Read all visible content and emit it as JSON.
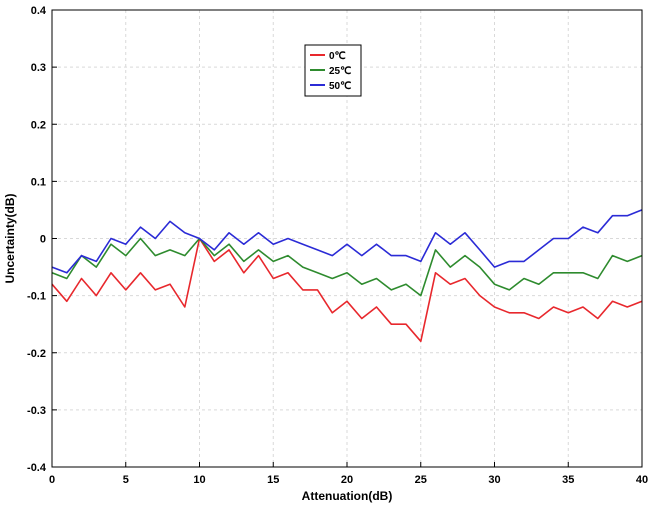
{
  "chart_data": {
    "type": "line",
    "title": "",
    "xlabel": "Attenuation(dB)",
    "ylabel": "Uncertainty(dB)",
    "xlim": [
      0,
      40
    ],
    "ylim": [
      -0.4,
      0.4
    ],
    "xticks": [
      0,
      5,
      10,
      15,
      20,
      25,
      30,
      35,
      40
    ],
    "yticks": [
      -0.4,
      -0.3,
      -0.2,
      -0.1,
      0,
      0.1,
      0.2,
      0.3,
      0.4
    ],
    "grid": true,
    "legend_position": "top-center",
    "x": [
      0,
      1,
      2,
      3,
      4,
      5,
      6,
      7,
      8,
      9,
      10,
      11,
      12,
      13,
      14,
      15,
      16,
      17,
      18,
      19,
      20,
      21,
      22,
      23,
      24,
      25,
      26,
      27,
      28,
      29,
      30,
      31,
      32,
      33,
      34,
      35,
      36,
      37,
      38,
      39,
      40
    ],
    "series": [
      {
        "name": "0℃",
        "color": "#e8282d",
        "values": [
          -0.08,
          -0.11,
          -0.07,
          -0.1,
          -0.06,
          -0.09,
          -0.06,
          -0.09,
          -0.08,
          -0.12,
          0.0,
          -0.04,
          -0.02,
          -0.06,
          -0.03,
          -0.07,
          -0.06,
          -0.09,
          -0.09,
          -0.13,
          -0.11,
          -0.14,
          -0.12,
          -0.15,
          -0.15,
          -0.18,
          -0.06,
          -0.08,
          -0.07,
          -0.1,
          -0.12,
          -0.13,
          -0.13,
          -0.14,
          -0.12,
          -0.13,
          -0.12,
          -0.14,
          -0.11,
          -0.12,
          -0.11
        ]
      },
      {
        "name": "25℃",
        "color": "#2e8b2e",
        "values": [
          -0.06,
          -0.07,
          -0.03,
          -0.05,
          -0.01,
          -0.03,
          0.0,
          -0.03,
          -0.02,
          -0.03,
          0.0,
          -0.03,
          -0.01,
          -0.04,
          -0.02,
          -0.04,
          -0.03,
          -0.05,
          -0.06,
          -0.07,
          -0.06,
          -0.08,
          -0.07,
          -0.09,
          -0.08,
          -0.1,
          -0.02,
          -0.05,
          -0.03,
          -0.05,
          -0.08,
          -0.09,
          -0.07,
          -0.08,
          -0.06,
          -0.06,
          -0.06,
          -0.07,
          -0.03,
          -0.04,
          -0.03
        ]
      },
      {
        "name": "50℃",
        "color": "#2b2bd6",
        "values": [
          -0.05,
          -0.06,
          -0.03,
          -0.04,
          0.0,
          -0.01,
          0.02,
          0.0,
          0.03,
          0.01,
          0.0,
          -0.02,
          0.01,
          -0.01,
          0.01,
          -0.01,
          0.0,
          -0.01,
          -0.02,
          -0.03,
          -0.01,
          -0.03,
          -0.01,
          -0.03,
          -0.03,
          -0.04,
          0.01,
          -0.01,
          0.01,
          -0.02,
          -0.05,
          -0.04,
          -0.04,
          -0.02,
          0.0,
          0.0,
          0.02,
          0.01,
          0.04,
          0.04,
          0.05
        ]
      }
    ]
  }
}
